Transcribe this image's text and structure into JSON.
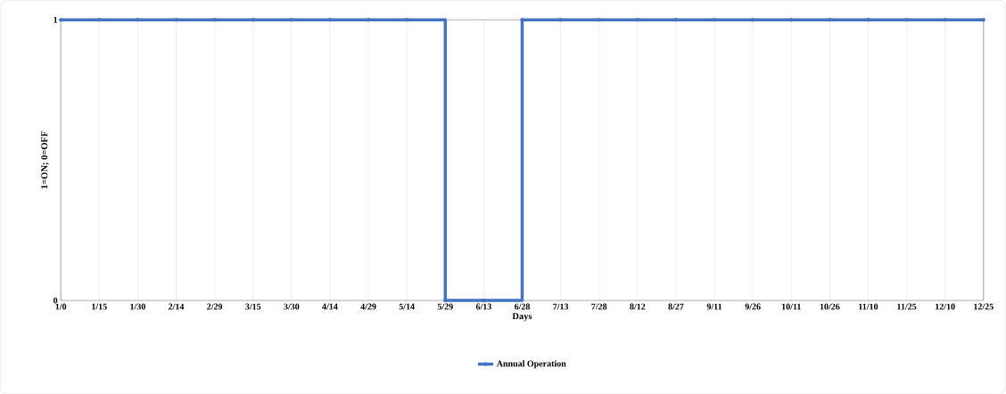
{
  "chart_data": {
    "type": "step",
    "xlabel": "Days",
    "ylabel": "1=ON; 0=OFF",
    "categories": [
      "1/0",
      "1/15",
      "1/30",
      "2/14",
      "2/29",
      "3/15",
      "3/30",
      "4/14",
      "4/29",
      "5/14",
      "5/29",
      "6/13",
      "6/28",
      "7/13",
      "7/28",
      "8/12",
      "8/27",
      "9/11",
      "9/26",
      "10/11",
      "10/26",
      "11/10",
      "11/25",
      "12/10",
      "12/25"
    ],
    "series": [
      {
        "name": "Annual Operation",
        "color": "#4472c4",
        "values": [
          1,
          1,
          1,
          1,
          1,
          1,
          1,
          1,
          1,
          1,
          0,
          0,
          1,
          1,
          1,
          1,
          1,
          1,
          1,
          1,
          1,
          1,
          1,
          1,
          1
        ]
      }
    ],
    "ylim": [
      0,
      1
    ],
    "yticks": [
      0,
      1
    ],
    "grid": "x",
    "legend": "bottom",
    "marker": "circle",
    "line_style": "solid"
  }
}
